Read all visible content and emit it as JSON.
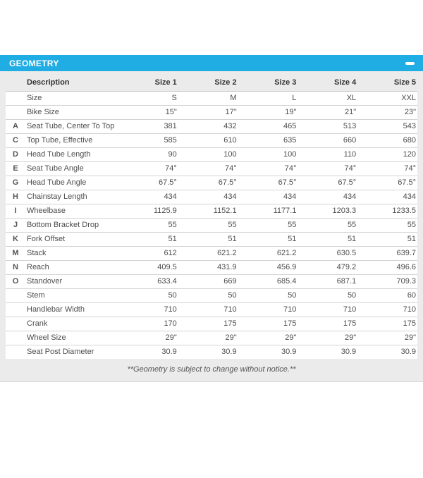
{
  "panel": {
    "title": "GEOMETRY",
    "accent_color": "#20ADE4",
    "body_background": "#EBEBEB",
    "collapse_icon": "minus"
  },
  "table": {
    "columns": [
      "",
      "Description",
      "Size 1",
      "Size 2",
      "Size 3",
      "Size 4",
      "Size 5"
    ],
    "rows": [
      {
        "letter": "",
        "description": "Size",
        "values": [
          "S",
          "M",
          "L",
          "XL",
          "XXL"
        ]
      },
      {
        "letter": "",
        "description": "Bike Size",
        "values": [
          "15\"",
          "17\"",
          "19\"",
          "21\"",
          "23\""
        ]
      },
      {
        "letter": "A",
        "description": "Seat Tube, Center To Top",
        "values": [
          "381",
          "432",
          "465",
          "513",
          "543"
        ]
      },
      {
        "letter": "C",
        "description": "Top Tube, Effective",
        "values": [
          "585",
          "610",
          "635",
          "660",
          "680"
        ]
      },
      {
        "letter": "D",
        "description": "Head Tube Length",
        "values": [
          "90",
          "100",
          "100",
          "110",
          "120"
        ]
      },
      {
        "letter": "E",
        "description": "Seat Tube Angle",
        "values": [
          "74°",
          "74°",
          "74°",
          "74°",
          "74°"
        ]
      },
      {
        "letter": "G",
        "description": "Head Tube Angle",
        "values": [
          "67.5°",
          "67.5°",
          "67.5°",
          "67.5°",
          "67.5°"
        ]
      },
      {
        "letter": "H",
        "description": "Chainstay Length",
        "values": [
          "434",
          "434",
          "434",
          "434",
          "434"
        ]
      },
      {
        "letter": "I",
        "description": "Wheelbase",
        "values": [
          "1125.9",
          "1152.1",
          "1177.1",
          "1203.3",
          "1233.5"
        ]
      },
      {
        "letter": "J",
        "description": "Bottom Bracket Drop",
        "values": [
          "55",
          "55",
          "55",
          "55",
          "55"
        ]
      },
      {
        "letter": "K",
        "description": "Fork Offset",
        "values": [
          "51",
          "51",
          "51",
          "51",
          "51"
        ]
      },
      {
        "letter": "M",
        "description": "Stack",
        "values": [
          "612",
          "621.2",
          "621.2",
          "630.5",
          "639.7"
        ]
      },
      {
        "letter": "N",
        "description": "Reach",
        "values": [
          "409.5",
          "431.9",
          "456.9",
          "479.2",
          "496.6"
        ]
      },
      {
        "letter": "O",
        "description": "Standover",
        "values": [
          "633.4",
          "669",
          "685.4",
          "687.1",
          "709.3"
        ]
      },
      {
        "letter": "",
        "description": "Stem",
        "values": [
          "50",
          "50",
          "50",
          "50",
          "60"
        ]
      },
      {
        "letter": "",
        "description": "Handlebar Width",
        "values": [
          "710",
          "710",
          "710",
          "710",
          "710"
        ]
      },
      {
        "letter": "",
        "description": "Crank",
        "values": [
          "170",
          "175",
          "175",
          "175",
          "175"
        ]
      },
      {
        "letter": "",
        "description": "Wheel Size",
        "values": [
          "29\"",
          "29\"",
          "29\"",
          "29\"",
          "29\""
        ]
      },
      {
        "letter": "",
        "description": "Seat Post Diameter",
        "values": [
          "30.9",
          "30.9",
          "30.9",
          "30.9",
          "30.9"
        ]
      }
    ]
  },
  "footnote": "**Geometry is subject to change without notice.**"
}
